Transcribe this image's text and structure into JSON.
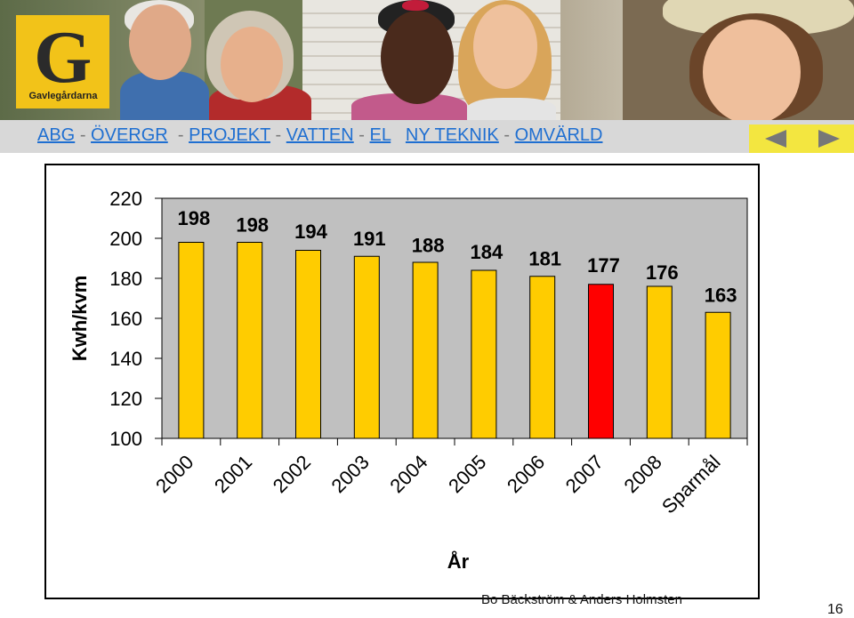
{
  "logo": {
    "letter": "G",
    "name": "Gavlegårdarna"
  },
  "nav": {
    "links": [
      "ABG",
      "ÖVERGR",
      "PROJEKT",
      "VATTEN",
      "EL",
      "NY TEKNIK",
      "OMVÄRLD"
    ],
    "separator": "-",
    "prev_icon": "arrow-left-icon",
    "next_icon": "arrow-right-icon"
  },
  "chart_data": {
    "type": "bar",
    "categories": [
      "2000",
      "2001",
      "2002",
      "2003",
      "2004",
      "2005",
      "2006",
      "2007",
      "2008",
      "Sparmål"
    ],
    "values": [
      198,
      198,
      194,
      191,
      188,
      184,
      181,
      177,
      176,
      163
    ],
    "data_labels": [
      "198",
      "198",
      "194",
      "191",
      "188",
      "184",
      "181",
      "177",
      "176",
      "163"
    ],
    "bar_colors": [
      "#ffcc00",
      "#ffcc00",
      "#ffcc00",
      "#ffcc00",
      "#ffcc00",
      "#ffcc00",
      "#ffcc00",
      "#ff0000",
      "#ffcc00",
      "#ffcc00"
    ],
    "ylabel": "Kwh/kvm",
    "xlabel": "År",
    "ylim": [
      100,
      220
    ],
    "yticks": [
      "100",
      "120",
      "140",
      "160",
      "180",
      "200",
      "220"
    ],
    "grid": false,
    "plot_background": "#c0c0c0"
  },
  "footer": {
    "authors": "Bo Bäckström & Anders Holmsten",
    "page_number": "16"
  }
}
